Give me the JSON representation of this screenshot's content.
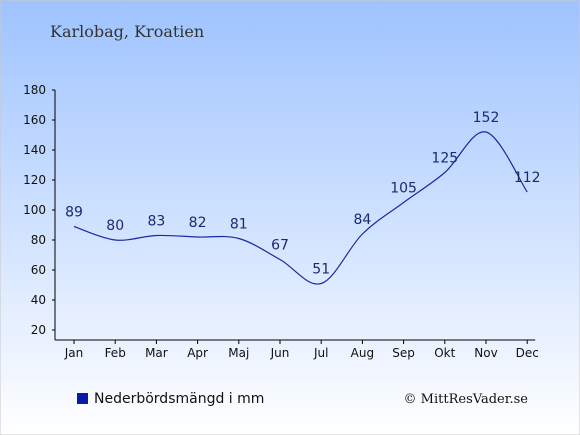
{
  "chart_data": {
    "type": "line",
    "title": "Karlobag, Kroatien",
    "categories": [
      "Jan",
      "Feb",
      "Mar",
      "Apr",
      "Maj",
      "Jun",
      "Jul",
      "Aug",
      "Sep",
      "Okt",
      "Nov",
      "Dec"
    ],
    "series": [
      {
        "name": "Nederbördsmängd i mm",
        "values": [
          89,
          80,
          83,
          82,
          81,
          67,
          51,
          84,
          105,
          125,
          152,
          112
        ]
      }
    ],
    "ylim": [
      20,
      180
    ],
    "yticks": [
      20,
      40,
      60,
      80,
      100,
      120,
      140,
      160,
      180
    ],
    "grid": false,
    "legend_position": "bottom-left"
  },
  "legend": {
    "label": "Nederbördsmängd i mm"
  },
  "credit": "© MittResVader.se",
  "colors": {
    "line": "#1a2a9c",
    "legend_marker": "#0a1aa8",
    "background_top": "#9ec3ff",
    "background_bottom": "#ffffff"
  }
}
